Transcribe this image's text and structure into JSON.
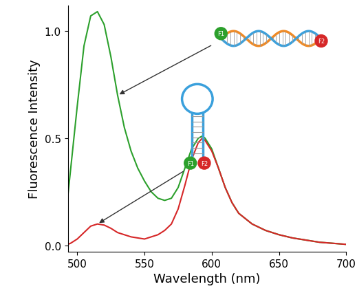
{
  "chart_data": {
    "type": "line",
    "x_label": "Wavelength (nm)",
    "y_label": "Fluorescence Intensity",
    "x": [
      493,
      495,
      500,
      505,
      510,
      515,
      520,
      525,
      530,
      535,
      540,
      545,
      550,
      555,
      560,
      565,
      570,
      575,
      580,
      585,
      590,
      593,
      595,
      600,
      605,
      610,
      615,
      620,
      630,
      640,
      650,
      660,
      670,
      680,
      690,
      700
    ],
    "series": [
      {
        "color": "#2ca02c",
        "values": [
          0.23,
          0.35,
          0.65,
          0.93,
          1.07,
          1.09,
          1.03,
          0.88,
          0.7,
          0.55,
          0.44,
          0.36,
          0.3,
          0.25,
          0.22,
          0.21,
          0.22,
          0.27,
          0.36,
          0.45,
          0.5,
          0.51,
          0.5,
          0.45,
          0.36,
          0.27,
          0.2,
          0.15,
          0.1,
          0.07,
          0.05,
          0.035,
          0.025,
          0.015,
          0.01,
          0.005
        ]
      },
      {
        "color": "#d62728",
        "values": [
          0.005,
          0.01,
          0.03,
          0.06,
          0.09,
          0.1,
          0.095,
          0.08,
          0.06,
          0.05,
          0.04,
          0.035,
          0.03,
          0.04,
          0.05,
          0.07,
          0.1,
          0.17,
          0.28,
          0.4,
          0.48,
          0.5,
          0.49,
          0.44,
          0.36,
          0.27,
          0.2,
          0.15,
          0.1,
          0.07,
          0.05,
          0.035,
          0.025,
          0.015,
          0.01,
          0.005
        ]
      }
    ],
    "xlim": [
      493,
      700
    ],
    "xticks": [
      500,
      550,
      600,
      650,
      700
    ],
    "ylim": [
      -0.03,
      1.12
    ],
    "yticks": [
      {
        "value": 0.0,
        "label": "0.0"
      },
      {
        "value": 0.5,
        "label": "0.5"
      },
      {
        "value": 1.0,
        "label": "1.0"
      }
    ],
    "annotations": [
      "F1",
      "F2"
    ]
  }
}
